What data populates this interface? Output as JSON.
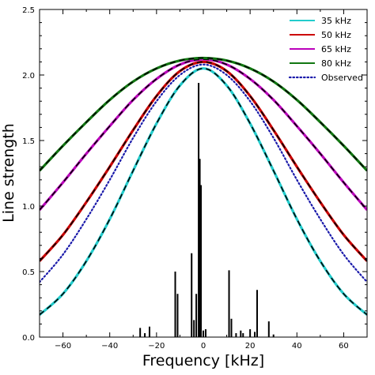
{
  "chart_data": {
    "type": "line",
    "title": "",
    "xlabel": "Frequency [kHz]",
    "ylabel": "Line strength",
    "xlim": [
      -70,
      70
    ],
    "ylim": [
      0,
      2.5
    ],
    "grid": false,
    "legend_position": "top-right",
    "x_ticks": [
      -60,
      -40,
      -20,
      0,
      20,
      40,
      60
    ],
    "x_tick_labels": [
      "−60",
      "−40",
      "−20",
      "0",
      "20",
      "40",
      "60"
    ],
    "y_ticks": [
      0,
      0.5,
      1.0,
      1.5,
      2.0,
      2.5
    ],
    "y_tick_labels": [
      "0.0",
      "0.5",
      "1.0",
      "1.5",
      "2.0",
      "2.5"
    ],
    "series": [
      {
        "name": "35 kHz",
        "color": "#22cccc",
        "style": "solid",
        "model_overlay": "black-dashed",
        "x": [
          -70,
          -60,
          -50,
          -40,
          -30,
          -20,
          -10,
          0,
          10,
          20,
          30,
          40,
          50,
          60,
          70
        ],
        "y": [
          0.17,
          0.33,
          0.58,
          0.9,
          1.27,
          1.63,
          1.92,
          2.05,
          1.92,
          1.63,
          1.27,
          0.9,
          0.58,
          0.33,
          0.17
        ]
      },
      {
        "name": "50 kHz",
        "color": "#cc0000",
        "style": "solid",
        "model_overlay": "black-dashed",
        "x": [
          -70,
          -60,
          -50,
          -40,
          -30,
          -20,
          -10,
          0,
          10,
          20,
          30,
          40,
          50,
          60,
          70
        ],
        "y": [
          0.58,
          0.78,
          1.03,
          1.3,
          1.58,
          1.84,
          2.03,
          2.1,
          2.03,
          1.84,
          1.58,
          1.3,
          1.03,
          0.78,
          0.58
        ]
      },
      {
        "name": "65 kHz",
        "color": "#bb00bb",
        "style": "solid",
        "model_overlay": "black-dashed",
        "x": [
          -70,
          -60,
          -50,
          -40,
          -30,
          -20,
          -10,
          0,
          10,
          20,
          30,
          40,
          50,
          60,
          70
        ],
        "y": [
          0.97,
          1.18,
          1.4,
          1.61,
          1.81,
          1.97,
          2.08,
          2.12,
          2.08,
          1.97,
          1.81,
          1.61,
          1.4,
          1.18,
          0.97
        ]
      },
      {
        "name": "80 kHz",
        "color": "#117711",
        "style": "solid",
        "model_overlay": "black-dashed",
        "x": [
          -70,
          -60,
          -50,
          -40,
          -30,
          -20,
          -10,
          0,
          10,
          20,
          30,
          40,
          50,
          60,
          70
        ],
        "y": [
          1.27,
          1.46,
          1.64,
          1.81,
          1.95,
          2.05,
          2.11,
          2.13,
          2.11,
          2.05,
          1.95,
          1.81,
          1.64,
          1.46,
          1.27
        ]
      },
      {
        "name": "Observed",
        "color": "#1a1aaa",
        "style": "dotted",
        "x": [
          -70,
          -60,
          -50,
          -40,
          -30,
          -20,
          -10,
          0,
          10,
          20,
          30,
          40,
          50,
          60,
          70
        ],
        "y": [
          0.42,
          0.63,
          0.9,
          1.2,
          1.52,
          1.8,
          2.0,
          2.08,
          2.0,
          1.8,
          1.52,
          1.2,
          0.9,
          0.63,
          0.42
        ]
      }
    ],
    "stick_spectrum": {
      "color": "#000000",
      "x": [
        -27,
        -25,
        -23,
        -12,
        -11,
        -5,
        -4,
        -3,
        -2,
        -1.5,
        -1,
        0,
        1,
        11,
        12,
        14,
        16,
        17,
        20,
        22,
        23,
        28,
        30
      ],
      "y": [
        0.07,
        0.03,
        0.08,
        0.5,
        0.33,
        0.64,
        0.13,
        0.33,
        1.94,
        1.36,
        1.16,
        0.05,
        0.06,
        0.51,
        0.14,
        0.03,
        0.05,
        0.03,
        0.06,
        0.04,
        0.36,
        0.12,
        0.02
      ]
    }
  }
}
